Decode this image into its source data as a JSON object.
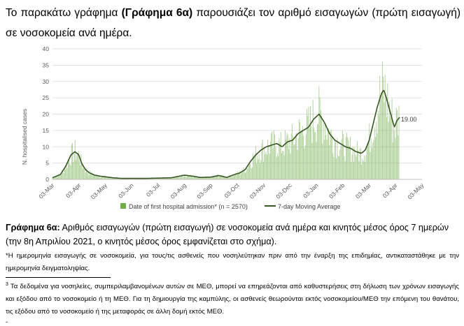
{
  "intro": {
    "part1": "Το παρακάτω γράφημα ",
    "bold": "(Γράφημα 6α)",
    "part2": " παρουσιάζει τον αριθμό εισαγωγών (πρώτη εισαγωγή) σε νοσοκομεία ανά ημέρα."
  },
  "caption": {
    "bold": "Γράφημα 6α:",
    "text": " Αριθμός εισαγωγών (πρώτη εισαγωγή) σε νοσοκομεία ανά ημέρα και κινητός μέσος όρος 7 ημερών (την 8η Απριλίου 2021, ο κινητός μέσος όρος εμφανίζεται στο σχήμα)."
  },
  "note": "*Η ημερομηνία εισαγωγής σε νοσοκομεία, για τους/τις ασθενείς που νοσηλεύτηκαν πριν από την έναρξη της επιδημίας, αντικαταστάθηκε με την ημερομηνία δειγματοληψίας.",
  "footnote": {
    "marker": "3",
    "text": " Τα δεδομένα για νοσηλείες, συμπεριλαμβανομένων αυτών σε ΜΕΘ, μπορεί να επηρεάζονται από καθυστερήσεις στη δήλωση των χρόνων εισαγωγής και εξόδου από το νοσοκομείο ή τη ΜΕΘ. Για τη δημιουργία της καμπύλης, οι ασθενείς θεωρούνται εκτός νοσοκομείου/ΜΕΘ την επόμενη του θανάτου, τις εξόδου από το νοσοκομείο ή της μεταφοράς σε άλλη δομή εκτός ΜΕΘ."
  },
  "stub": "-",
  "chart_data": {
    "type": "bar",
    "ylabel": "N. hospitalised cases",
    "ylim": [
      0,
      40
    ],
    "yticks": [
      0,
      5,
      10,
      15,
      20,
      25,
      30,
      35,
      40
    ],
    "xticks": [
      "03-Mar",
      "03-Apr",
      "03-May",
      "03-Jun",
      "03-Jul",
      "03-Aug",
      "03-Sep",
      "03-Oct",
      "03-Nov",
      "03-Dec",
      "03-Jan",
      "03-Feb",
      "03-Mar",
      "03-Apr",
      "03-May"
    ],
    "grid": true,
    "legend_position": "bottom",
    "annotation": "19.00",
    "colors": {
      "bars": "#70ad47",
      "line": "#375623",
      "grid": "#d9d9d9",
      "axis": "#595959"
    },
    "series": [
      {
        "name": "Date of first hospital admission* (n = 2570)",
        "kind": "bar",
        "note": "daily values"
      },
      {
        "name": "7-day Moving Average",
        "kind": "line",
        "x_month_index": [
          0,
          0.3,
          0.5,
          0.7,
          0.85,
          1.0,
          1.1,
          1.25,
          1.4,
          1.6,
          1.8,
          2.0,
          2.3,
          2.6,
          3.0,
          3.5,
          4.0,
          4.5,
          5.0,
          5.3,
          5.6,
          6.0,
          6.3,
          6.6,
          6.9,
          7.1,
          7.3,
          7.5,
          7.7,
          7.9,
          8.1,
          8.3,
          8.5,
          8.7,
          8.9,
          9.1,
          9.3,
          9.5,
          9.7,
          9.9,
          10.1,
          10.3,
          10.5,
          10.7,
          10.9,
          11.1,
          11.3,
          11.5,
          11.7,
          11.85,
          12.0,
          12.15,
          12.3,
          12.45,
          12.55,
          12.65,
          12.75,
          12.85,
          12.95,
          13.05,
          13.15
        ],
        "values": [
          0.5,
          1.5,
          4,
          7.5,
          8.5,
          7.5,
          5,
          3,
          2,
          1.3,
          1,
          0.8,
          0.5,
          0.3,
          0.3,
          0.3,
          0.4,
          0.5,
          1.3,
          1.0,
          0.6,
          0.7,
          1.2,
          0.6,
          1.5,
          2.0,
          3.0,
          5.5,
          7.5,
          9.0,
          10.0,
          10.5,
          11.0,
          10.0,
          11.5,
          12.0,
          14.0,
          15.0,
          16.0,
          18.5,
          20.0,
          17.5,
          14.0,
          12.0,
          11.0,
          10.0,
          9.5,
          8.5,
          8.0,
          9.0,
          12.0,
          17.0,
          22.0,
          26.0,
          27.5,
          25.0,
          22.0,
          19.0,
          16.0,
          18.0,
          19.0
        ]
      }
    ]
  }
}
